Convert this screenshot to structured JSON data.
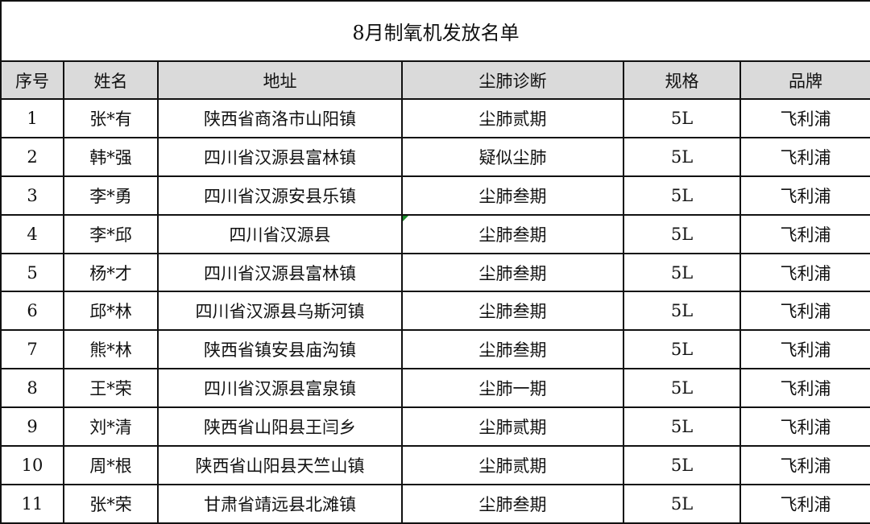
{
  "title": "8月制氧机发放名单",
  "columns": [
    "序号",
    "姓名",
    "地址",
    "尘肺诊断",
    "规格",
    "品牌"
  ],
  "rows": [
    [
      "1",
      "张*有",
      "陕西省商洛市山阳镇",
      "尘肺贰期",
      "5L",
      "飞利浦"
    ],
    [
      "2",
      "韩*强",
      "四川省汉源县富林镇",
      "疑似尘肺",
      "5L",
      "飞利浦"
    ],
    [
      "3",
      "李*勇",
      "四川省汉源安县乐镇",
      "尘肺叁期",
      "5L",
      "飞利浦"
    ],
    [
      "4",
      "李*邱",
      "四川省汉源县",
      "尘肺叁期",
      "5L",
      "飞利浦"
    ],
    [
      "5",
      "杨*才",
      "四川省汉源县富林镇",
      "尘肺叁期",
      "5L",
      "飞利浦"
    ],
    [
      "6",
      "邱*林",
      "四川省汉源县乌斯河镇",
      "尘肺叁期",
      "5L",
      "飞利浦"
    ],
    [
      "7",
      "熊*林",
      "陕西省镇安县庙沟镇",
      "尘肺叁期",
      "5L",
      "飞利浦"
    ],
    [
      "8",
      "王*荣",
      "四川省汉源县富泉镇",
      "尘肺一期",
      "5L",
      "飞利浦"
    ],
    [
      "9",
      "刘*清",
      "陕西省山阳县王闫乡",
      "尘肺贰期",
      "5L",
      "飞利浦"
    ],
    [
      "10",
      "周*根",
      "陕西省山阳县天竺山镇",
      "尘肺贰期",
      "5L",
      "飞利浦"
    ],
    [
      "11",
      "张*荣",
      "甘肃省靖远县北滩镇",
      "尘肺叁期",
      "5L",
      "飞利浦"
    ]
  ]
}
